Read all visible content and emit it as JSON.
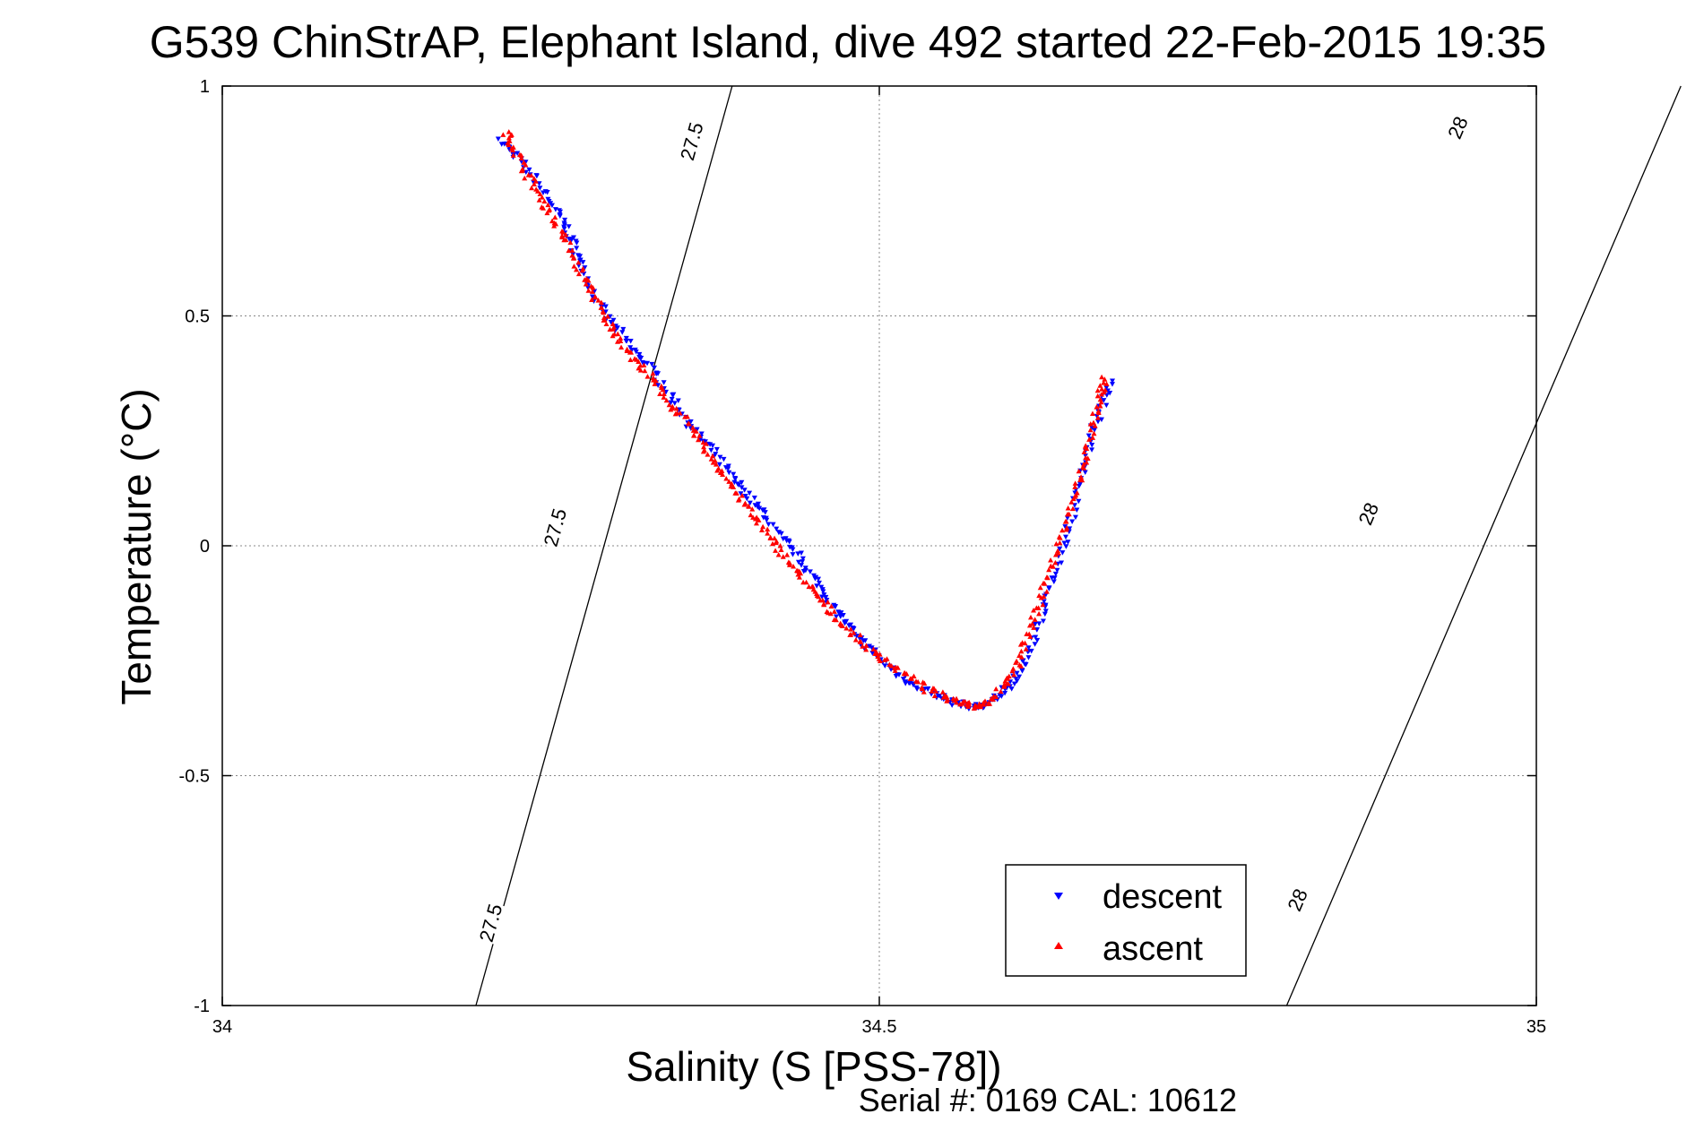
{
  "chart_data": {
    "type": "scatter",
    "title": "G539 ChinStrAP, Elephant Island, dive 492 started 22-Feb-2015 19:35",
    "xlabel": "Salinity (S [PSS-78])",
    "ylabel": "Temperature (°C)",
    "footer": "Serial #: 0169 CAL: 10612",
    "xlim": [
      34,
      35
    ],
    "ylim": [
      -1,
      1
    ],
    "x_ticks": [
      34,
      34.5,
      35
    ],
    "x_tick_labels": [
      "34",
      "34.5",
      "35"
    ],
    "y_ticks": [
      1,
      0.5,
      0,
      -0.5,
      -1
    ],
    "y_tick_labels": [
      "1",
      "0.5",
      "0",
      "-0.5",
      "-1"
    ],
    "grid": true,
    "legend_position": "bottom-right",
    "contours": [
      {
        "label": "27.5",
        "line": [
          [
            34.193,
            -1.0
          ],
          [
            34.388,
            1.0
          ]
        ],
        "label_positions": [
          [
            34.357,
            0.88
          ],
          [
            34.253,
            0.04
          ],
          [
            34.204,
            -0.82
          ]
        ]
      },
      {
        "label": "28",
        "line": [
          [
            34.81,
            -1.0
          ],
          [
            35.11,
            1.0
          ]
        ],
        "label_positions": [
          [
            34.94,
            0.91
          ],
          [
            34.872,
            0.07
          ],
          [
            34.818,
            -0.77
          ]
        ]
      }
    ],
    "series": [
      {
        "name": "descent",
        "color": "#0000ff",
        "marker": "triangle-down",
        "path": [
          [
            34.213,
            0.88
          ],
          [
            34.222,
            0.85
          ],
          [
            34.238,
            0.8
          ],
          [
            34.252,
            0.74
          ],
          [
            34.262,
            0.69
          ],
          [
            34.268,
            0.65
          ],
          [
            34.275,
            0.6
          ],
          [
            34.285,
            0.53
          ],
          [
            34.298,
            0.48
          ],
          [
            34.312,
            0.43
          ],
          [
            34.325,
            0.39
          ],
          [
            34.338,
            0.34
          ],
          [
            34.35,
            0.29
          ],
          [
            34.362,
            0.24
          ],
          [
            34.375,
            0.2
          ],
          [
            34.388,
            0.15
          ],
          [
            34.4,
            0.11
          ],
          [
            34.412,
            0.07
          ],
          [
            34.425,
            0.02
          ],
          [
            34.438,
            -0.02
          ],
          [
            34.45,
            -0.07
          ],
          [
            34.46,
            -0.11
          ],
          [
            34.47,
            -0.15
          ],
          [
            34.48,
            -0.19
          ],
          [
            34.495,
            -0.23
          ],
          [
            34.51,
            -0.27
          ],
          [
            34.525,
            -0.3
          ],
          [
            34.54,
            -0.32
          ],
          [
            34.555,
            -0.34
          ],
          [
            34.57,
            -0.35
          ],
          [
            34.58,
            -0.35
          ],
          [
            34.59,
            -0.33
          ],
          [
            34.6,
            -0.3
          ],
          [
            34.61,
            -0.26
          ],
          [
            34.618,
            -0.2
          ],
          [
            34.626,
            -0.13
          ],
          [
            34.634,
            -0.06
          ],
          [
            34.642,
            0.02
          ],
          [
            34.65,
            0.1
          ],
          [
            34.657,
            0.18
          ],
          [
            34.663,
            0.25
          ],
          [
            34.67,
            0.31
          ],
          [
            34.677,
            0.36
          ]
        ]
      },
      {
        "name": "ascent",
        "color": "#ff0000",
        "marker": "triangle-up",
        "path": [
          [
            34.216,
            0.9
          ],
          [
            34.223,
            0.86
          ],
          [
            34.232,
            0.81
          ],
          [
            34.242,
            0.76
          ],
          [
            34.252,
            0.71
          ],
          [
            34.262,
            0.66
          ],
          [
            34.272,
            0.6
          ],
          [
            34.282,
            0.55
          ],
          [
            34.29,
            0.5
          ],
          [
            34.3,
            0.46
          ],
          [
            34.312,
            0.41
          ],
          [
            34.325,
            0.37
          ],
          [
            34.338,
            0.32
          ],
          [
            34.35,
            0.28
          ],
          [
            34.363,
            0.23
          ],
          [
            34.375,
            0.18
          ],
          [
            34.388,
            0.13
          ],
          [
            34.4,
            0.08
          ],
          [
            34.413,
            0.03
          ],
          [
            34.425,
            -0.01
          ],
          [
            34.438,
            -0.06
          ],
          [
            34.45,
            -0.1
          ],
          [
            34.462,
            -0.14
          ],
          [
            34.475,
            -0.18
          ],
          [
            34.49,
            -0.22
          ],
          [
            34.505,
            -0.25
          ],
          [
            34.52,
            -0.28
          ],
          [
            34.535,
            -0.31
          ],
          [
            34.55,
            -0.33
          ],
          [
            34.565,
            -0.34
          ],
          [
            34.575,
            -0.35
          ],
          [
            34.585,
            -0.34
          ],
          [
            34.595,
            -0.3
          ],
          [
            34.605,
            -0.26
          ],
          [
            34.613,
            -0.2
          ],
          [
            34.62,
            -0.14
          ],
          [
            34.628,
            -0.07
          ],
          [
            34.636,
            0.0
          ],
          [
            34.644,
            0.07
          ],
          [
            34.652,
            0.14
          ],
          [
            34.658,
            0.2
          ],
          [
            34.663,
            0.27
          ],
          [
            34.668,
            0.33
          ],
          [
            34.672,
            0.37
          ]
        ]
      }
    ]
  }
}
